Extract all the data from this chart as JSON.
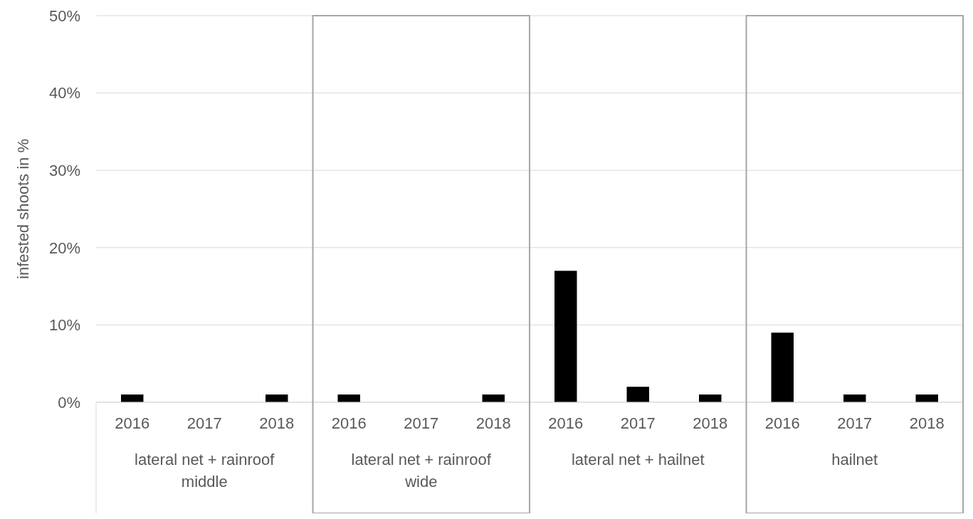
{
  "chart_data": {
    "type": "bar",
    "ylabel": "infested shoots in %",
    "categories": [
      "2016",
      "2017",
      "2018",
      "2016",
      "2017",
      "2018",
      "2016",
      "2017",
      "2018",
      "2016",
      "2017",
      "2018"
    ],
    "values": [
      1,
      0,
      1,
      1,
      0,
      1,
      17,
      2,
      1,
      9,
      1,
      1
    ],
    "color": "#000000",
    "ylim": [
      0,
      50
    ],
    "yticks": [
      {
        "value": 0,
        "label": "0%"
      },
      {
        "value": 10,
        "label": "10%"
      },
      {
        "value": 20,
        "label": "20%"
      },
      {
        "value": 30,
        "label": "30%"
      },
      {
        "value": 40,
        "label": "40%"
      },
      {
        "value": 50,
        "label": "50%"
      }
    ],
    "grid": "y",
    "annotations": [
      "lateral net + rainroof middle",
      "lateral net + rainroof wide",
      "lateral net + hailnet",
      "hailnet"
    ]
  }
}
